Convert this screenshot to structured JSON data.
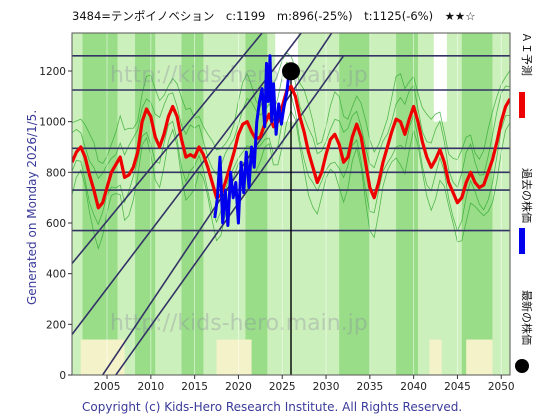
{
  "header": {
    "title": "3484=テンポイノベション　c:1199　m:896(-25%)　t:1125(-6%)　★★☆"
  },
  "side_note": "Generated on Monday 2026/1/5.",
  "footer": "Copyright (c) Kids-Hero Research Institute. All Rights Reserved.",
  "watermark": "http://kids-hero.main.jp",
  "legend": {
    "ai": "ＡＩ予測",
    "past": "過去の株価",
    "latest": "最新の株価"
  },
  "colors": {
    "ai": "#ee0000",
    "past": "#0000ee",
    "latest": "#000000",
    "hline": "#333366",
    "diag": "#333366",
    "green_dark": "#99dd88",
    "green_light": "#ccf0bb",
    "yellow": "#f4f2c8",
    "thin_green": "#33aa33"
  },
  "chart_data": {
    "type": "line",
    "xlim": [
      2001,
      2051
    ],
    "ylim": [
      0,
      1350
    ],
    "x_ticks": [
      2005,
      2010,
      2015,
      2020,
      2025,
      2030,
      2035,
      2040,
      2045,
      2050
    ],
    "y_ticks": [
      0,
      200,
      400,
      600,
      800,
      1000,
      1200
    ],
    "horizontal_levels": [
      570,
      730,
      800,
      895,
      1125,
      1260
    ],
    "trend_channels": [
      {
        "x": [
          2004.5,
          2032
        ],
        "y": [
          0,
          1420
        ]
      },
      {
        "x": [
          2001,
          2032
        ],
        "y": [
          160,
          1570
        ]
      },
      {
        "x": [
          2006,
          2032
        ],
        "y": [
          0,
          1260
        ]
      },
      {
        "x": [
          2001,
          2032
        ],
        "y": [
          440,
          1740
        ]
      }
    ],
    "vertical_marker_x": 2026.0,
    "latest_point": {
      "x": 2026.0,
      "y": 1199
    },
    "series": [
      {
        "name": "ＡＩ予測",
        "x": [
          2001,
          2001.5,
          2002,
          2002.5,
          2003,
          2003.5,
          2004,
          2004.5,
          2005,
          2005.5,
          2006,
          2006.5,
          2007,
          2007.5,
          2008,
          2008.5,
          2009,
          2009.5,
          2010,
          2010.5,
          2011,
          2011.5,
          2012,
          2012.5,
          2013,
          2013.5,
          2014,
          2014.5,
          2015,
          2015.5,
          2016,
          2016.5,
          2017,
          2017.5,
          2018,
          2018.5,
          2019,
          2019.5,
          2020,
          2020.5,
          2021,
          2021.5,
          2022,
          2022.5,
          2023,
          2023.5,
          2024,
          2024.5,
          2025,
          2025.5,
          2026,
          2026.5,
          2027,
          2027.5,
          2028,
          2028.5,
          2029,
          2029.5,
          2030,
          2030.5,
          2031,
          2031.5,
          2032,
          2032.5,
          2033,
          2033.5,
          2034,
          2034.5,
          2035,
          2035.5,
          2036,
          2036.5,
          2037,
          2037.5,
          2038,
          2038.5,
          2039,
          2039.5,
          2040,
          2040.5,
          2041,
          2041.5,
          2042,
          2042.5,
          2043,
          2043.5,
          2044,
          2044.5,
          2045,
          2045.5,
          2046,
          2046.5,
          2047,
          2047.5,
          2048,
          2048.5,
          2049,
          2049.5,
          2050,
          2050.5,
          2051
        ],
        "values": [
          840,
          880,
          900,
          860,
          790,
          730,
          660,
          680,
          740,
          800,
          830,
          860,
          780,
          790,
          820,
          880,
          1000,
          1050,
          1020,
          940,
          900,
          950,
          1020,
          1060,
          1020,
          930,
          860,
          870,
          860,
          900,
          870,
          820,
          760,
          700,
          710,
          760,
          820,
          880,
          950,
          990,
          1000,
          960,
          930,
          940,
          990,
          1030,
          980,
          1000,
          1060,
          1120,
          1140,
          1100,
          1020,
          960,
          880,
          820,
          760,
          800,
          870,
          930,
          950,
          910,
          840,
          860,
          940,
          990,
          940,
          840,
          740,
          700,
          760,
          840,
          900,
          960,
          1010,
          1000,
          950,
          1010,
          1060,
          1000,
          920,
          860,
          820,
          850,
          890,
          840,
          760,
          720,
          680,
          700,
          760,
          800,
          760,
          740,
          750,
          800,
          850,
          920,
          1000,
          1060,
          1090
        ]
      },
      {
        "name": "過去の株価",
        "x": [
          2017.3,
          2017.6,
          2017.9,
          2018.2,
          2018.5,
          2018.8,
          2019.1,
          2019.4,
          2019.7,
          2020.0,
          2020.3,
          2020.6,
          2020.9,
          2021.2,
          2021.5,
          2021.8,
          2022.1,
          2022.4,
          2022.7,
          2023.0,
          2023.2,
          2023.4,
          2023.6,
          2023.8,
          2024.0,
          2024.3,
          2024.6,
          2024.9,
          2025.2,
          2025.5,
          2025.8
        ],
        "values": [
          620,
          700,
          860,
          600,
          730,
          590,
          800,
          700,
          760,
          600,
          840,
          720,
          880,
          740,
          900,
          820,
          1000,
          1080,
          1130,
          980,
          1230,
          1080,
          1260,
          1000,
          1150,
          950,
          1070,
          990,
          1060,
          1110,
          1199
        ]
      }
    ]
  }
}
